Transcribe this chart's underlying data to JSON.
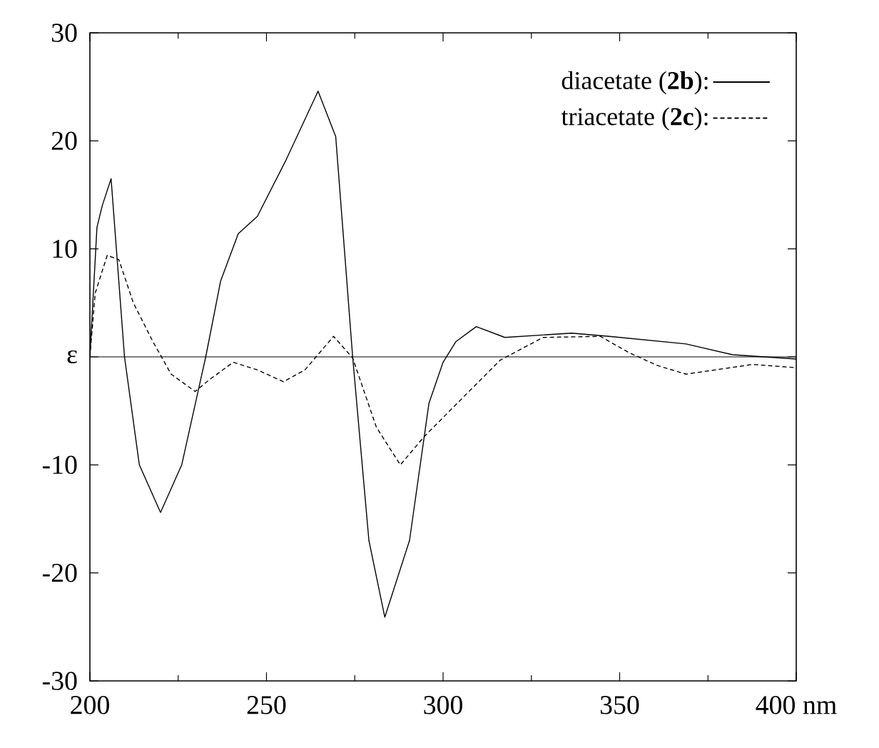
{
  "chart_data": {
    "type": "line",
    "xlim": [
      200,
      400
    ],
    "ylim": [
      -30,
      30
    ],
    "xticks": [
      200,
      250,
      300,
      350,
      {
        "value": 400,
        "label": "400 nm"
      }
    ],
    "yticks": [
      -30,
      -20,
      -10,
      {
        "value": 0,
        "label": "ε"
      },
      10,
      20,
      30
    ],
    "legend": "top right",
    "marker": "none",
    "ref_lines": [
      {
        "axis": "y",
        "value": 0,
        "color": "#000000"
      }
    ],
    "series": [
      {
        "name": "diacetate (**2b**):",
        "color": "#000000",
        "line_style": "solid",
        "x": [
          200,
          202,
          203.5,
          206,
          209.8,
          214,
          220,
          226,
          232.8,
          237,
          242,
          247.4,
          255.5,
          264.6,
          269.6,
          274.4,
          279,
          283.5,
          290.5,
          296,
          300,
          303.6,
          309.4,
          317.5,
          336.4,
          347,
          368.8,
          382,
          400
        ],
        "values": [
          0,
          12,
          14,
          16.5,
          0,
          -10,
          -14.4,
          -10,
          0,
          7,
          11.4,
          13,
          18.2,
          24.6,
          20.4,
          0,
          -17,
          -24.1,
          -17,
          -4.3,
          -0.5,
          1.4,
          2.8,
          1.8,
          2.2,
          1.9,
          1.2,
          0.2,
          -0.2
        ]
      },
      {
        "name": "triacetate (**2c**):",
        "color": "#000000",
        "line_style": "dashed",
        "x": [
          200,
          201.5,
          204.9,
          208.2,
          212.3,
          217.7,
          223,
          229.8,
          233.9,
          240.6,
          247.4,
          254.8,
          260.9,
          269,
          274.4,
          281.1,
          287.9,
          294.6,
          304,
          316.2,
          328.3,
          344.5,
          352.6,
          360.7,
          368.8,
          387.7,
          400
        ],
        "values": [
          0,
          5.9,
          9.4,
          9,
          5,
          1.5,
          -1.6,
          -3.2,
          -2.1,
          -0.5,
          -1.2,
          -2.3,
          -1.2,
          1.9,
          -0.1,
          -6.5,
          -10,
          -7.4,
          -4.3,
          -0.3,
          1.8,
          1.9,
          0.4,
          -0.8,
          -1.6,
          -0.7,
          -1
        ]
      }
    ]
  }
}
